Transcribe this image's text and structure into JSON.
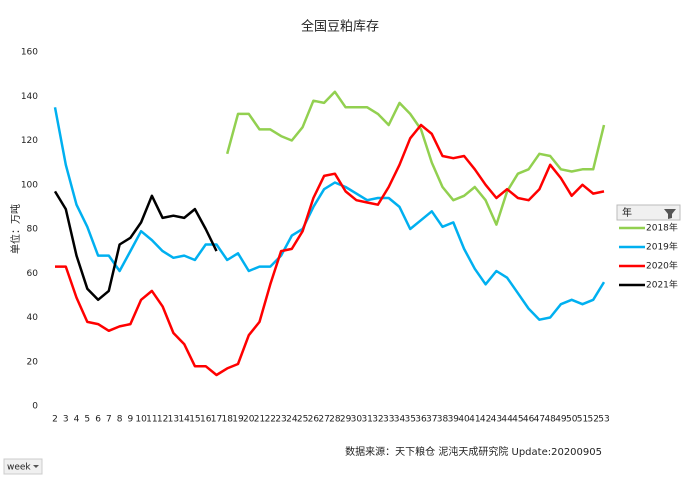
{
  "chart_data": {
    "type": "line",
    "title": "全国豆粕库存",
    "y_label": "单位：万吨",
    "source": "数据来源：天下粮仓 泥沌天成研究院 Update:20200905",
    "legend_title": "年",
    "x_field_button": "week",
    "categories": [
      "2",
      "3",
      "4",
      "5",
      "6",
      "7",
      "8",
      "9",
      "10",
      "11",
      "12",
      "13",
      "14",
      "15",
      "16",
      "17",
      "18",
      "19",
      "20",
      "21",
      "22",
      "23",
      "24",
      "25",
      "26",
      "27",
      "28",
      "29",
      "30",
      "31",
      "32",
      "33",
      "34",
      "35",
      "36",
      "37",
      "38",
      "39",
      "40",
      "41",
      "42",
      "43",
      "44",
      "45",
      "46",
      "47",
      "48",
      "49",
      "50",
      "51",
      "52",
      "53"
    ],
    "ylim": [
      0,
      160
    ],
    "yticks": [
      0,
      20,
      40,
      60,
      80,
      100,
      120,
      140,
      160
    ],
    "grid": false,
    "legend": "right",
    "series": [
      {
        "name": "2018年",
        "color": "#92d050",
        "values": [
          null,
          null,
          null,
          null,
          null,
          null,
          null,
          null,
          null,
          null,
          null,
          null,
          null,
          null,
          null,
          null,
          114,
          132,
          132,
          125,
          125,
          122,
          120,
          126,
          138,
          137,
          142,
          135,
          135,
          135,
          132,
          127,
          137,
          132,
          125,
          110,
          99,
          93,
          95,
          99,
          93,
          82,
          97,
          105,
          107,
          114,
          113,
          107,
          106,
          107,
          107,
          127
        ]
      },
      {
        "name": "2019年",
        "color": "#00b0f0",
        "values": [
          135,
          109,
          91,
          81,
          68,
          68,
          61,
          70,
          79,
          75,
          70,
          67,
          68,
          66,
          73,
          73,
          66,
          69,
          61,
          63,
          63,
          68,
          77,
          80,
          90,
          98,
          101,
          99,
          96,
          93,
          94,
          94,
          90,
          80,
          84,
          88,
          81,
          83,
          71,
          62,
          55,
          61,
          58,
          51,
          44,
          39,
          40,
          46,
          48,
          46,
          48,
          56
        ]
      },
      {
        "name": "2020年",
        "color": "#ff0000",
        "values": [
          63,
          63,
          49,
          38,
          37,
          34,
          36,
          37,
          48,
          52,
          45,
          33,
          28,
          18,
          18,
          14,
          17,
          19,
          32,
          38,
          55,
          70,
          71,
          79,
          94,
          104,
          105,
          97,
          93,
          92,
          91,
          99,
          109,
          121,
          127,
          123,
          113,
          112,
          113,
          107,
          100,
          94,
          98,
          94,
          93,
          98,
          109,
          103,
          95,
          100,
          96,
          97
        ]
      },
      {
        "name": "2021年",
        "color": "#000000",
        "values": [
          97,
          89,
          68,
          53,
          48,
          52,
          73,
          76,
          83,
          95,
          85,
          86,
          85,
          89,
          80,
          70,
          null,
          null,
          null,
          null,
          null,
          null,
          null,
          null,
          null,
          null,
          null,
          null,
          null,
          null,
          null,
          null,
          null,
          null,
          null,
          null,
          null,
          null,
          null,
          null,
          null,
          null,
          null,
          null,
          null,
          null,
          null,
          null,
          null,
          null,
          null,
          null
        ]
      }
    ]
  }
}
